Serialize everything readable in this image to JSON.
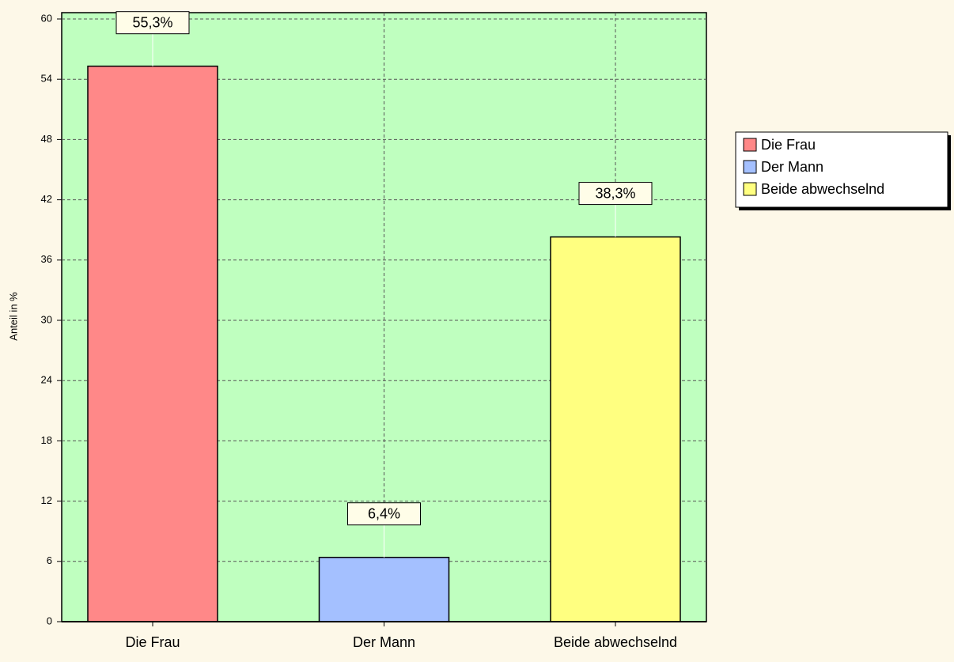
{
  "chart_data": {
    "type": "bar",
    "ylabel": "Anteil in %",
    "categories": [
      "Die Frau",
      "Der Mann",
      "Beide abwechselnd"
    ],
    "values": [
      55.3,
      6.4,
      38.3
    ],
    "value_labels": [
      "55,3%",
      "6,4%",
      "38,3%"
    ],
    "colors": [
      "#ff8888",
      "#a4c0ff",
      "#ffff80"
    ],
    "ylim": [
      0,
      60
    ],
    "yticks": [
      0,
      6,
      12,
      18,
      24,
      30,
      36,
      42,
      48,
      54,
      60
    ],
    "grid": true,
    "legend": "right"
  }
}
